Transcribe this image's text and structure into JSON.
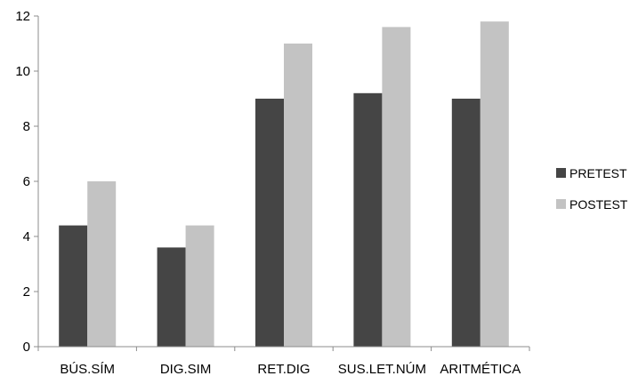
{
  "chart_data": {
    "type": "bar",
    "categories": [
      "BÚS.SÍM",
      "DIG.SIM",
      "RET.DIG",
      "SUS.LET.NÚM",
      "ARITMÉTICA"
    ],
    "series": [
      {
        "name": "PRETEST",
        "values": [
          4.4,
          3.6,
          9.0,
          9.2,
          9.0
        ],
        "color": "#454545"
      },
      {
        "name": "POSTEST",
        "values": [
          6.0,
          4.4,
          11.0,
          11.6,
          11.8
        ],
        "color": "#c3c3c3"
      }
    ],
    "ylim": [
      0,
      12
    ],
    "yticks": [
      0,
      2,
      4,
      6,
      8,
      10,
      12
    ],
    "grid": false,
    "legend_position": "right",
    "title": "",
    "xlabel": "",
    "ylabel": ""
  }
}
